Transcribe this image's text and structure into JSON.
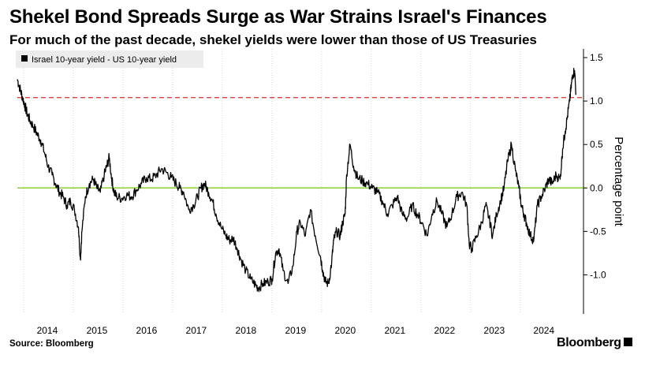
{
  "title": "Shekel Bond Spreads Surge as War Strains Israel's Finances",
  "subtitle": "For much of the past decade, shekel yields were lower than those of US Treasuries",
  "source": "Source: Bloomberg",
  "brand": "Bloomberg",
  "colors": {
    "series": "#000000",
    "dashed_line": "#e0433b",
    "zero_line": "#8ccf2e",
    "axis": "#000000"
  },
  "chart_data": {
    "type": "line",
    "ylabel": "Percentage point",
    "ylim": [
      -1.45,
      1.6
    ],
    "yticks": [
      1.5,
      1.0,
      0.5,
      0.0,
      -0.5,
      -1.0
    ],
    "ytick_labels": [
      "1.5",
      "1.0",
      "0.5",
      "0.0",
      "-0.5",
      "-1.0"
    ],
    "xlim": [
      2013.35,
      2024.75
    ],
    "xticks": [
      2014,
      2015,
      2016,
      2017,
      2018,
      2019,
      2020,
      2021,
      2022,
      2023,
      2024
    ],
    "xtick_labels": [
      "2014",
      "2015",
      "2016",
      "2017",
      "2018",
      "2019",
      "2020",
      "2021",
      "2022",
      "2023",
      "2024"
    ],
    "legend": {
      "label": "Israel 10-year yield - US 10-year yield",
      "position": "top-left"
    },
    "reference_lines": [
      {
        "y": 1.04,
        "style": "dashed",
        "color": "red"
      },
      {
        "y": 0.0,
        "style": "solid",
        "color": "green"
      }
    ],
    "series": [
      {
        "x": [
          2013.35,
          2013.4,
          2013.45,
          2013.5,
          2013.55,
          2013.6,
          2013.68,
          2013.75,
          2013.82,
          2013.9,
          2013.97,
          2014.05,
          2014.12,
          2014.2,
          2014.27,
          2014.35,
          2014.42,
          2014.5,
          2014.58,
          2014.62,
          2014.65,
          2014.72,
          2014.8,
          2014.88,
          2014.95,
          2015.02,
          2015.1,
          2015.15,
          2015.2,
          2015.25,
          2015.3,
          2015.35,
          2015.45,
          2015.55,
          2015.65,
          2015.75,
          2015.85,
          2015.95,
          2016.05,
          2016.15,
          2016.25,
          2016.35,
          2016.45,
          2016.55,
          2016.62,
          2016.7,
          2016.8,
          2016.9,
          2016.98,
          2017.05,
          2017.12,
          2017.2,
          2017.28,
          2017.35,
          2017.45,
          2017.55,
          2017.62,
          2017.7,
          2017.78,
          2017.85,
          2017.95,
          2018.05,
          2018.15,
          2018.2,
          2018.3,
          2018.4,
          2018.48,
          2018.55,
          2018.62,
          2018.7,
          2018.8,
          2018.9,
          2018.98,
          2019.05,
          2019.15,
          2019.25,
          2019.35,
          2019.45,
          2019.5,
          2019.55,
          2019.62,
          2019.68,
          2019.72,
          2019.78,
          2019.85,
          2019.9,
          2019.95,
          2019.98,
          2020.05,
          2020.12,
          2020.2,
          2020.3,
          2020.4,
          2020.5,
          2020.6,
          2020.7,
          2020.8,
          2020.9,
          2021.0,
          2021.1,
          2021.2,
          2021.3,
          2021.4,
          2021.5,
          2021.6,
          2021.7,
          2021.8,
          2021.9,
          2022.0,
          2022.1,
          2022.2,
          2022.3,
          2022.4,
          2022.45,
          2022.5,
          2022.6,
          2022.7,
          2022.78,
          2022.85,
          2022.92,
          2023.0,
          2023.08,
          2023.15,
          2023.22,
          2023.3,
          2023.38,
          2023.45,
          2023.5,
          2023.55,
          2023.6,
          2023.68,
          2023.75,
          2023.82,
          2023.9,
          2023.98,
          2024.05,
          2024.12,
          2024.2,
          2024.28,
          2024.33,
          2024.38,
          2024.42,
          2024.47,
          2024.5,
          2024.53,
          2024.57,
          2024.6
        ],
        "values": [
          1.25,
          1.15,
          1.05,
          0.95,
          0.85,
          0.78,
          0.7,
          0.62,
          0.55,
          0.4,
          0.25,
          0.15,
          0.05,
          -0.05,
          -0.1,
          -0.2,
          -0.15,
          -0.25,
          -0.45,
          -0.82,
          -0.5,
          -0.1,
          0.05,
          0.1,
          0.0,
          -0.05,
          0.15,
          0.25,
          0.35,
          0.1,
          -0.05,
          -0.1,
          -0.12,
          -0.08,
          -0.1,
          -0.02,
          0.05,
          0.12,
          0.1,
          0.15,
          0.22,
          0.18,
          0.12,
          0.05,
          0.0,
          -0.05,
          -0.25,
          -0.2,
          -0.1,
          0.0,
          0.05,
          -0.05,
          -0.15,
          -0.3,
          -0.45,
          -0.55,
          -0.6,
          -0.58,
          -0.7,
          -0.82,
          -0.95,
          -1.05,
          -1.12,
          -1.15,
          -1.1,
          -1.08,
          -1.05,
          -0.75,
          -0.7,
          -0.95,
          -1.1,
          -0.9,
          -0.5,
          -0.4,
          -0.55,
          -0.25,
          -0.55,
          -0.78,
          -0.95,
          -1.08,
          -1.1,
          -0.85,
          -0.6,
          -0.5,
          -0.55,
          -0.4,
          -0.3,
          0.15,
          0.5,
          0.25,
          0.12,
          0.08,
          0.05,
          0.0,
          -0.05,
          -0.15,
          -0.3,
          -0.2,
          -0.1,
          -0.3,
          -0.35,
          -0.2,
          -0.3,
          -0.4,
          -0.55,
          -0.3,
          -0.15,
          -0.3,
          -0.45,
          -0.3,
          -0.1,
          -0.05,
          -0.2,
          -0.65,
          -0.7,
          -0.55,
          -0.4,
          -0.2,
          -0.35,
          -0.55,
          -0.3,
          -0.15,
          0.0,
          0.3,
          0.5,
          0.2,
          0.0,
          -0.2,
          -0.3,
          -0.4,
          -0.55,
          -0.6,
          -0.2,
          -0.1,
          0.0,
          0.1,
          0.05,
          0.15,
          0.1,
          0.45,
          0.65,
          0.8,
          1.0,
          1.15,
          1.3,
          1.35,
          1.08
        ]
      }
    ]
  }
}
